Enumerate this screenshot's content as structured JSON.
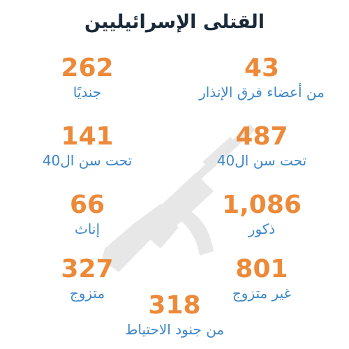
{
  "title": "القتلى الإسرائيليين",
  "background_icon": "rifle-icon",
  "colors": {
    "number": "#ec8a3a",
    "label": "#3c86c8",
    "title": "#1b2a3a",
    "watermark": "#000000"
  },
  "stats": [
    {
      "id": "reserve-members",
      "value": "43",
      "label": "من أعضاء فرق الإنذار"
    },
    {
      "id": "soldiers",
      "value": "262",
      "label": "جنديًا"
    },
    {
      "id": "under-40-a",
      "value": "487",
      "label": "تحت سن ال40"
    },
    {
      "id": "under-40-b",
      "value": "141",
      "label": "تحت سن ال40"
    },
    {
      "id": "males",
      "value": "1,086",
      "label": "ذكور"
    },
    {
      "id": "females",
      "value": "66",
      "label": "إناث"
    },
    {
      "id": "unmarried",
      "value": "801",
      "label": "غير متزوج"
    },
    {
      "id": "married",
      "value": "327",
      "label": "متزوج"
    },
    {
      "id": "reserve-soldiers",
      "value": "318",
      "label": "من جنود الاحتياط"
    }
  ]
}
